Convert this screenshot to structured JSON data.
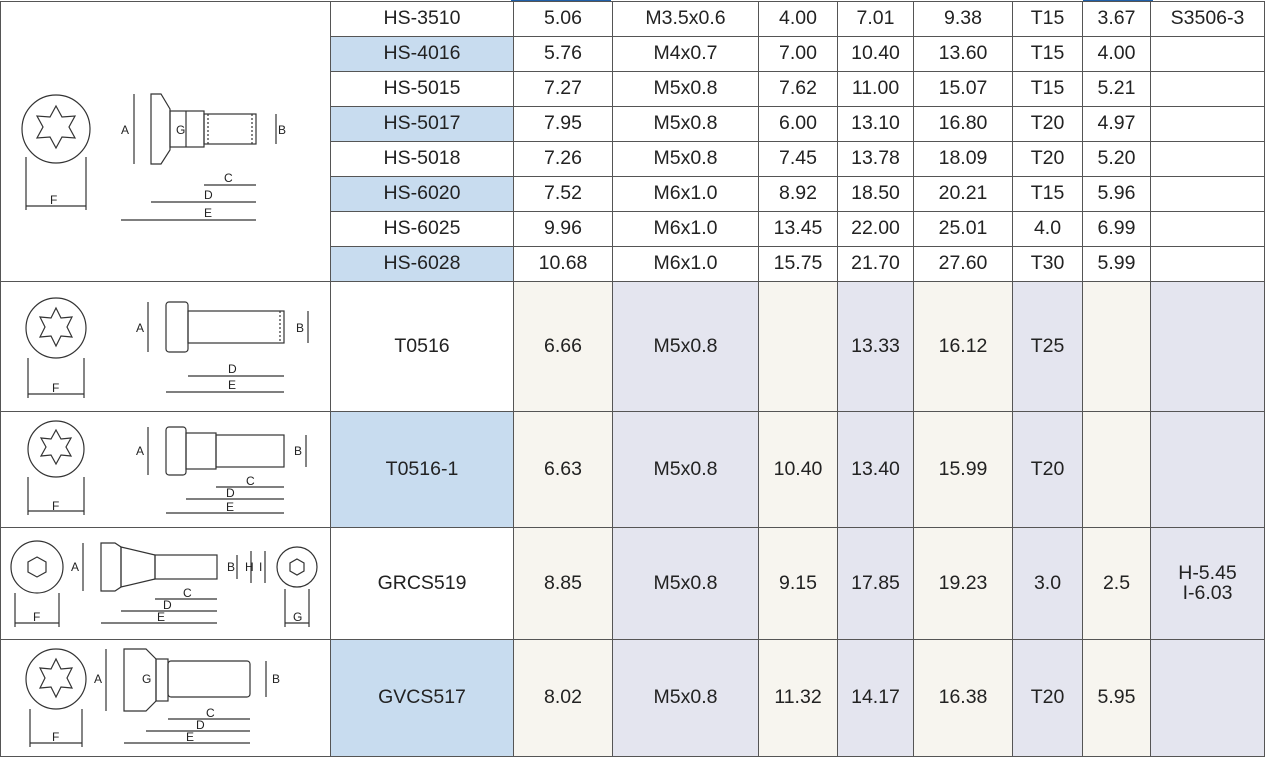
{
  "table": {
    "group_hs": [
      {
        "model": "HS-3510",
        "c1": "5.06",
        "thread": "M3.5x0.6",
        "c3": "4.00",
        "c4": "7.01",
        "c5": "9.38",
        "key": "T15",
        "c7": "3.67",
        "note": "S3506-3"
      },
      {
        "model": "HS-4016",
        "c1": "5.76",
        "thread": "M4x0.7",
        "c3": "7.00",
        "c4": "10.40",
        "c5": "13.60",
        "key": "T15",
        "c7": "4.00",
        "note": ""
      },
      {
        "model": "HS-5015",
        "c1": "7.27",
        "thread": "M5x0.8",
        "c3": "7.62",
        "c4": "11.00",
        "c5": "15.07",
        "key": "T15",
        "c7": "5.21",
        "note": ""
      },
      {
        "model": "HS-5017",
        "c1": "7.95",
        "thread": "M5x0.8",
        "c3": "6.00",
        "c4": "13.10",
        "c5": "16.80",
        "key": "T20",
        "c7": "4.97",
        "note": ""
      },
      {
        "model": "HS-5018",
        "c1": "7.26",
        "thread": "M5x0.8",
        "c3": "7.45",
        "c4": "13.78",
        "c5": "18.09",
        "key": "T20",
        "c7": "5.20",
        "note": ""
      },
      {
        "model": "HS-6020",
        "c1": "7.52",
        "thread": "M6x1.0",
        "c3": "8.92",
        "c4": "18.50",
        "c5": "20.21",
        "key": "T15",
        "c7": "5.96",
        "note": ""
      },
      {
        "model": "HS-6025",
        "c1": "9.96",
        "thread": "M6x1.0",
        "c3": "13.45",
        "c4": "22.00",
        "c5": "25.01",
        "key": "4.0",
        "c7": "6.99",
        "note": ""
      },
      {
        "model": "HS-6028",
        "c1": "10.68",
        "thread": "M6x1.0",
        "c3": "15.75",
        "c4": "21.70",
        "c5": "27.60",
        "key": "T30",
        "c7": "5.99",
        "note": ""
      }
    ],
    "t0516": {
      "model": "T0516",
      "c1": "6.66",
      "thread": "M5x0.8",
      "c3": "",
      "c4": "13.33",
      "c5": "16.12",
      "key": "T25",
      "c7": "",
      "note": ""
    },
    "t0516_1": {
      "model": "T0516-1",
      "c1": "6.63",
      "thread": "M5x0.8",
      "c3": "10.40",
      "c4": "13.40",
      "c5": "15.99",
      "key": "T20",
      "c7": "",
      "note": ""
    },
    "grcs519": {
      "model": "GRCS519",
      "c1": "8.85",
      "thread": "M5x0.8",
      "c3": "9.15",
      "c4": "17.85",
      "c5": "19.23",
      "key": "3.0",
      "c7": "2.5",
      "note_line1": "H-5.45",
      "note_line2": "I-6.03"
    },
    "gvcs517": {
      "model": "GVCS517",
      "c1": "8.02",
      "thread": "M5x0.8",
      "c3": "11.32",
      "c4": "14.17",
      "c5": "16.38",
      "key": "T20",
      "c7": "5.95",
      "note": ""
    }
  },
  "drawing_labels": {
    "A": "A",
    "B": "B",
    "C": "C",
    "D": "D",
    "E": "E",
    "F": "F",
    "G": "G",
    "H": "H",
    "I": "I"
  },
  "colors": {
    "highlight_blue": "#c8dcef",
    "cream": "#f7f5ef",
    "lavender": "#e4e5ef",
    "accent": "#1f5fa8"
  }
}
